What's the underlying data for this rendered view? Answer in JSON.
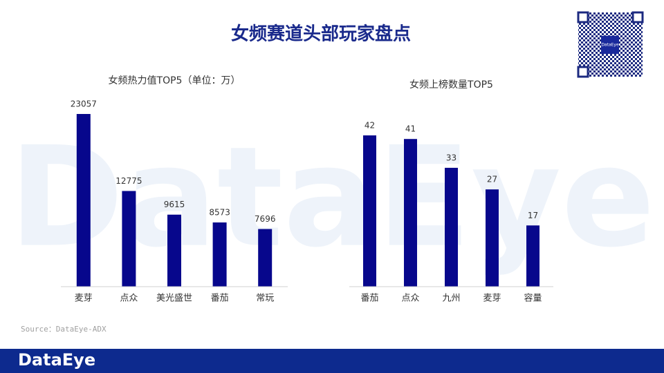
{
  "title": "女频赛道头部玩家盘点",
  "source": "Source：DataEye-ADX",
  "footer_logo": "DataEye",
  "watermark": "DataEye",
  "qr_label": "DataEye",
  "chart_data": [
    {
      "type": "bar",
      "title": "女频热力值TOP5（单位：万）",
      "categories": [
        "麦芽",
        "点众",
        "美光盛世",
        "番茄",
        "常玩"
      ],
      "values": [
        23057,
        12775,
        9615,
        8573,
        7696
      ],
      "color": "#07078c"
    },
    {
      "type": "bar",
      "title": "女频上榜数量TOP5",
      "categories": [
        "番茄",
        "点众",
        "九州",
        "麦芽",
        "容量"
      ],
      "values": [
        42,
        41,
        33,
        27,
        17
      ],
      "color": "#07078c"
    }
  ]
}
